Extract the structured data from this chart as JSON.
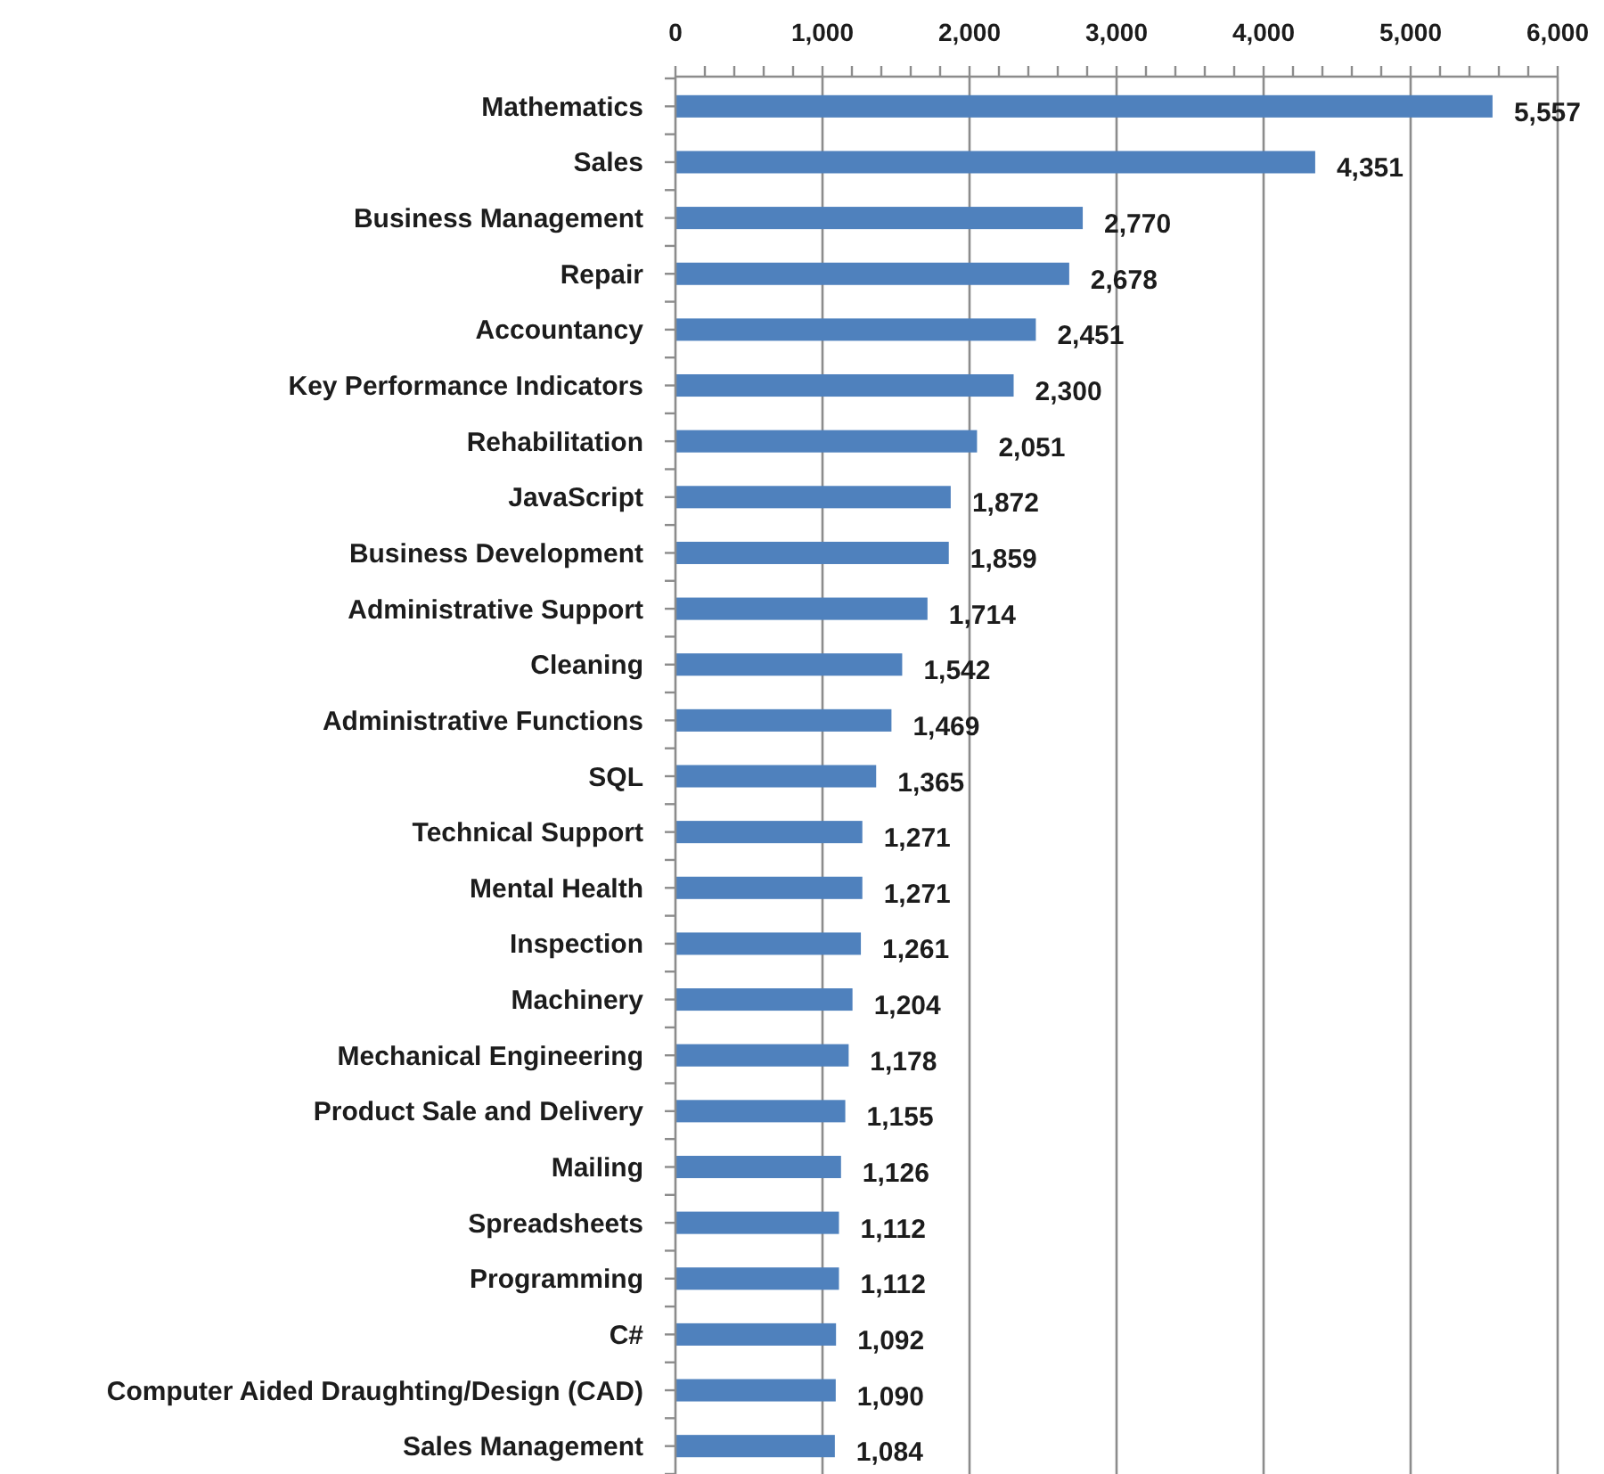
{
  "chart_data": {
    "type": "bar",
    "orientation": "horizontal",
    "categories": [
      "Mathematics",
      "Sales",
      "Business Management",
      "Repair",
      "Accountancy",
      "Key Performance Indicators",
      "Rehabilitation",
      "JavaScript",
      "Business Development",
      "Administrative Support",
      "Cleaning",
      "Administrative Functions",
      "SQL",
      "Technical Support",
      "Mental Health",
      "Inspection",
      "Machinery",
      "Mechanical Engineering",
      "Product Sale and Delivery",
      "Mailing",
      "Spreadsheets",
      "Programming",
      "C#",
      "Computer Aided Draughting/Design (CAD)",
      "Sales Management"
    ],
    "values": [
      5557,
      4351,
      2770,
      2678,
      2451,
      2300,
      2051,
      1872,
      1859,
      1714,
      1542,
      1469,
      1365,
      1271,
      1271,
      1261,
      1204,
      1178,
      1155,
      1126,
      1112,
      1112,
      1092,
      1090,
      1084
    ],
    "value_labels": [
      "5,557",
      "4,351",
      "2,770",
      "2,678",
      "2,451",
      "2,300",
      "2,051",
      "1,872",
      "1,859",
      "1,714",
      "1,542",
      "1,469",
      "1,365",
      "1,271",
      "1,271",
      "1,261",
      "1,204",
      "1,178",
      "1,155",
      "1,126",
      "1,112",
      "1,112",
      "1,092",
      "1,090",
      "1,084"
    ],
    "color": "#4f81bd",
    "xlim": [
      0,
      6000
    ],
    "xticks": [
      0,
      {
        "value": 200,
        "label": null
      },
      {
        "value": 400,
        "label": null
      },
      {
        "value": 600,
        "label": null
      },
      {
        "value": 800,
        "label": null
      },
      {
        "value": 1000,
        "label": "1,000"
      },
      {
        "value": 1200,
        "label": null
      },
      {
        "value": 1400,
        "label": null
      },
      {
        "value": 1600,
        "label": null
      },
      {
        "value": 1800,
        "label": null
      },
      {
        "value": 2000,
        "label": "2,000"
      },
      {
        "value": 2200,
        "label": null
      },
      {
        "value": 2400,
        "label": null
      },
      {
        "value": 2600,
        "label": null
      },
      {
        "value": 2800,
        "label": null
      },
      {
        "value": 3000,
        "label": "3,000"
      },
      {
        "value": 3200,
        "label": null
      },
      {
        "value": 3400,
        "label": null
      },
      {
        "value": 3600,
        "label": null
      },
      {
        "value": 3800,
        "label": null
      },
      {
        "value": 4000,
        "label": "4,000"
      },
      {
        "value": 4200,
        "label": null
      },
      {
        "value": 4400,
        "label": null
      },
      {
        "value": 4600,
        "label": null
      },
      {
        "value": 4800,
        "label": null
      },
      {
        "value": 5000,
        "label": "5,000"
      },
      {
        "value": 5200,
        "label": null
      },
      {
        "value": 5400,
        "label": null
      },
      {
        "value": 5600,
        "label": null
      },
      {
        "value": 5800,
        "label": null
      },
      {
        "value": 6000,
        "label": "6,000"
      }
    ],
    "grid": "x"
  }
}
